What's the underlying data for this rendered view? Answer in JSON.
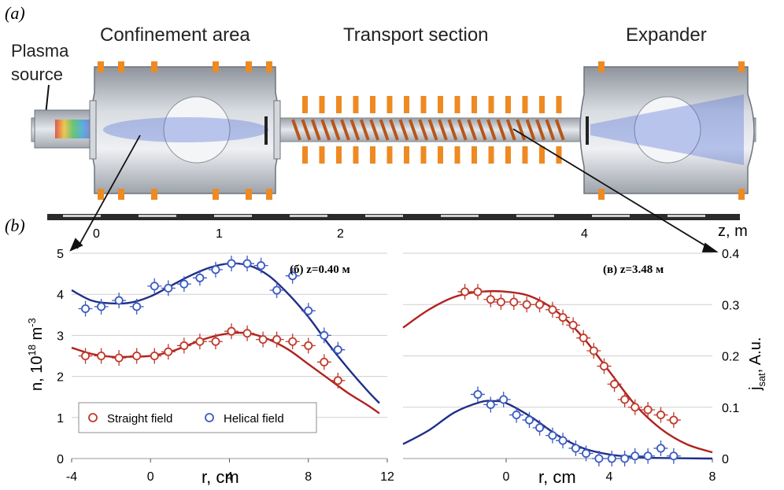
{
  "figure": {
    "panel_a_label": "(a)",
    "panel_b_label": "(b)",
    "labels": {
      "plasma_source_line1": "Plasma",
      "plasma_source_line2": "source",
      "confinement": "Confinement area",
      "transport": "Transport section",
      "expander": "Expander"
    },
    "z_axis": {
      "label": "z, m",
      "ticks": [
        "0",
        "1",
        "2",
        "4"
      ]
    }
  },
  "colors": {
    "straight": "#c0392b",
    "helical": "#3b5bbf",
    "straight_curve": "#b0221e",
    "helical_curve": "#1f2f86",
    "vessel": "#b9bec6",
    "coil": "#f08a1c"
  },
  "chart_data": [
    {
      "type": "scatter",
      "title": "(б) z=0.40 м",
      "xlabel": "r, cm",
      "ylabel_main": "n, 10",
      "ylabel_sup1": "18",
      "ylabel_mid": " m",
      "ylabel_sup2": "-3",
      "xlim": [
        -4,
        12
      ],
      "ylim": [
        0,
        5
      ],
      "xticks": [
        "-4",
        "0",
        "4",
        "8",
        "12"
      ],
      "yticks": [
        "0",
        "1",
        "2",
        "3",
        "4",
        "5"
      ],
      "grid": true,
      "legend": {
        "position": "bottom-left",
        "items": [
          "Straight field",
          "Helical field"
        ]
      },
      "series": [
        {
          "name": "Straight field",
          "points": [
            [
              -3.3,
              2.5
            ],
            [
              -2.5,
              2.5
            ],
            [
              -1.6,
              2.45
            ],
            [
              -0.7,
              2.5
            ],
            [
              0.2,
              2.5
            ],
            [
              0.9,
              2.6
            ],
            [
              1.7,
              2.75
            ],
            [
              2.5,
              2.85
            ],
            [
              3.3,
              2.85
            ],
            [
              4.1,
              3.1
            ],
            [
              4.9,
              3.05
            ],
            [
              5.7,
              2.9
            ],
            [
              6.4,
              2.9
            ],
            [
              7.2,
              2.85
            ],
            [
              8.0,
              2.75
            ],
            [
              8.8,
              2.35
            ],
            [
              9.5,
              1.9
            ]
          ],
          "curve": [
            [
              -4,
              2.7
            ],
            [
              -3,
              2.55
            ],
            [
              -2,
              2.48
            ],
            [
              -1,
              2.48
            ],
            [
              0,
              2.5
            ],
            [
              1,
              2.6
            ],
            [
              2,
              2.78
            ],
            [
              3,
              2.95
            ],
            [
              4,
              3.05
            ],
            [
              5,
              3.05
            ],
            [
              6,
              2.9
            ],
            [
              7,
              2.65
            ],
            [
              8,
              2.3
            ],
            [
              9,
              1.95
            ],
            [
              10,
              1.6
            ],
            [
              11,
              1.3
            ],
            [
              11.6,
              1.1
            ]
          ]
        },
        {
          "name": "Helical field",
          "points": [
            [
              -3.3,
              3.65
            ],
            [
              -2.5,
              3.7
            ],
            [
              -1.6,
              3.85
            ],
            [
              -0.7,
              3.7
            ],
            [
              0.2,
              4.2
            ],
            [
              0.9,
              4.15
            ],
            [
              1.7,
              4.25
            ],
            [
              2.5,
              4.4
            ],
            [
              3.3,
              4.6
            ],
            [
              4.1,
              4.75
            ],
            [
              4.9,
              4.75
            ],
            [
              5.6,
              4.7
            ],
            [
              6.4,
              4.1
            ],
            [
              7.2,
              4.45
            ],
            [
              8.0,
              3.6
            ],
            [
              8.8,
              3.0
            ],
            [
              9.5,
              2.65
            ]
          ],
          "curve": [
            [
              -4,
              4.1
            ],
            [
              -3,
              3.85
            ],
            [
              -2,
              3.78
            ],
            [
              -1,
              3.8
            ],
            [
              0,
              3.95
            ],
            [
              1,
              4.2
            ],
            [
              2,
              4.45
            ],
            [
              3,
              4.65
            ],
            [
              4,
              4.75
            ],
            [
              5,
              4.7
            ],
            [
              6,
              4.45
            ],
            [
              7,
              4.0
            ],
            [
              8,
              3.45
            ],
            [
              9,
              2.8
            ],
            [
              10,
              2.2
            ],
            [
              11,
              1.65
            ],
            [
              11.6,
              1.35
            ]
          ]
        }
      ]
    },
    {
      "type": "scatter",
      "title": "(в) z=3.48 м",
      "xlabel": "r, cm",
      "ylabel_main": "j",
      "ylabel_sub": "sat",
      "ylabel_rest": ", A.u.",
      "xlim": [
        -4,
        8
      ],
      "ylim": [
        0,
        0.4
      ],
      "xticks": [
        "0",
        "4",
        "8"
      ],
      "yticks": [
        "0",
        "0.1",
        "0.2",
        "0.3",
        "0.4"
      ],
      "grid": true,
      "series": [
        {
          "name": "Straight field",
          "points": [
            [
              -1.6,
              0.325
            ],
            [
              -1.1,
              0.325
            ],
            [
              -0.6,
              0.31
            ],
            [
              -0.2,
              0.305
            ],
            [
              0.3,
              0.305
            ],
            [
              0.8,
              0.3
            ],
            [
              1.3,
              0.3
            ],
            [
              1.8,
              0.29
            ],
            [
              2.2,
              0.275
            ],
            [
              2.6,
              0.26
            ],
            [
              3.0,
              0.235
            ],
            [
              3.4,
              0.21
            ],
            [
              3.8,
              0.18
            ],
            [
              4.2,
              0.145
            ],
            [
              4.6,
              0.115
            ],
            [
              5.0,
              0.1
            ],
            [
              5.5,
              0.095
            ],
            [
              6.0,
              0.085
            ],
            [
              6.5,
              0.075
            ]
          ],
          "curve": [
            [
              -4,
              0.255
            ],
            [
              -3,
              0.29
            ],
            [
              -2,
              0.315
            ],
            [
              -1,
              0.325
            ],
            [
              0,
              0.325
            ],
            [
              1,
              0.315
            ],
            [
              2,
              0.285
            ],
            [
              3,
              0.235
            ],
            [
              4,
              0.17
            ],
            [
              5,
              0.105
            ],
            [
              6,
              0.058
            ],
            [
              7,
              0.028
            ],
            [
              8,
              0.012
            ]
          ]
        },
        {
          "name": "Helical field",
          "points": [
            [
              -1.1,
              0.125
            ],
            [
              -0.6,
              0.105
            ],
            [
              -0.1,
              0.115
            ],
            [
              0.4,
              0.085
            ],
            [
              0.9,
              0.075
            ],
            [
              1.3,
              0.06
            ],
            [
              1.8,
              0.045
            ],
            [
              2.2,
              0.035
            ],
            [
              2.7,
              0.02
            ],
            [
              3.1,
              0.01
            ],
            [
              3.6,
              0.0
            ],
            [
              4.1,
              0.0
            ],
            [
              4.6,
              0.0
            ],
            [
              5.0,
              0.005
            ],
            [
              5.5,
              0.005
            ],
            [
              6.0,
              0.02
            ],
            [
              6.5,
              0.005
            ]
          ],
          "curve": [
            [
              -4,
              0.028
            ],
            [
              -3,
              0.055
            ],
            [
              -2,
              0.09
            ],
            [
              -1,
              0.11
            ],
            [
              -0.5,
              0.112
            ],
            [
              0,
              0.108
            ],
            [
              1,
              0.08
            ],
            [
              2,
              0.045
            ],
            [
              3,
              0.02
            ],
            [
              4,
              0.008
            ],
            [
              5,
              0.003
            ],
            [
              6,
              0.001
            ],
            [
              8,
              0.0
            ]
          ]
        }
      ]
    }
  ]
}
